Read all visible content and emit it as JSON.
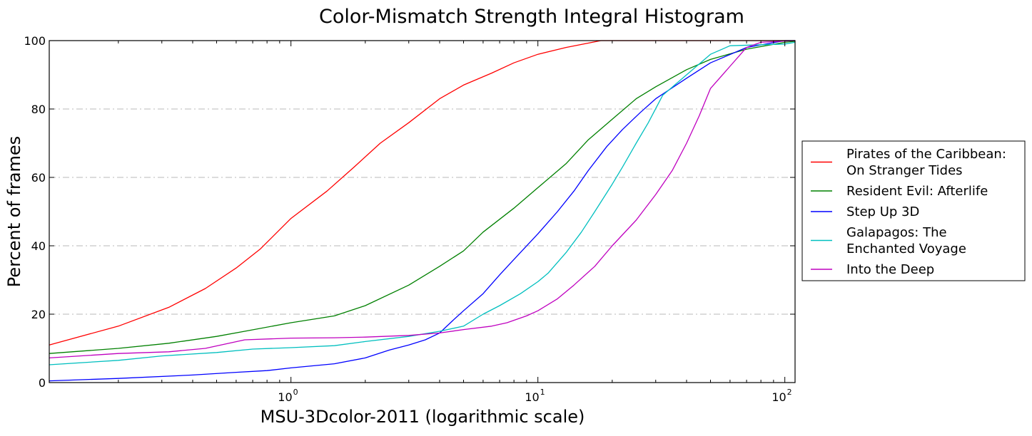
{
  "chart_data": {
    "type": "line",
    "title": "Color-Mismatch Strength Integral Histogram",
    "xlabel": "MSU-3Dcolor-2011 (logarithmic scale)",
    "ylabel": "Percent of frames",
    "x_scale": "log",
    "xlim": [
      0.105,
      110
    ],
    "ylim": [
      0,
      100
    ],
    "x_ticks": [
      {
        "value": 1,
        "base": "10",
        "exp": "0"
      },
      {
        "value": 10,
        "base": "10",
        "exp": "1"
      },
      {
        "value": 100,
        "base": "10",
        "exp": "2"
      }
    ],
    "y_ticks": [
      0,
      20,
      40,
      60,
      80,
      100
    ],
    "grid": "horizontal dashed",
    "legend_position": "right, outside plot",
    "series": [
      {
        "name": "Pirates of the Caribbean:\nOn Stranger Tides",
        "legend_lines": [
          "Pirates of the Caribbean:",
          "On Stranger Tides"
        ],
        "color": "#ff0000",
        "points": [
          [
            0.105,
            11
          ],
          [
            0.2,
            16.5
          ],
          [
            0.32,
            22
          ],
          [
            0.45,
            27.5
          ],
          [
            0.6,
            33.5
          ],
          [
            0.75,
            39
          ],
          [
            1.0,
            48
          ],
          [
            1.4,
            56
          ],
          [
            1.8,
            63
          ],
          [
            2.3,
            70
          ],
          [
            3.0,
            76
          ],
          [
            4.0,
            83
          ],
          [
            5.0,
            87
          ],
          [
            6.5,
            90.5
          ],
          [
            8.0,
            93.5
          ],
          [
            10,
            96
          ],
          [
            13,
            98
          ],
          [
            18,
            100
          ],
          [
            110,
            100
          ]
        ]
      },
      {
        "name": "Resident Evil: Afterlife",
        "legend_lines": [
          "Resident Evil: Afterlife"
        ],
        "color": "#008000",
        "points": [
          [
            0.105,
            8.5
          ],
          [
            0.2,
            10
          ],
          [
            0.32,
            11.5
          ],
          [
            0.5,
            13.5
          ],
          [
            0.65,
            15
          ],
          [
            1.0,
            17.5
          ],
          [
            1.5,
            19.5
          ],
          [
            2.0,
            22.5
          ],
          [
            3.0,
            28.5
          ],
          [
            4.0,
            34
          ],
          [
            5.0,
            38.5
          ],
          [
            6.0,
            44
          ],
          [
            8.0,
            51
          ],
          [
            10,
            57
          ],
          [
            13,
            64
          ],
          [
            16,
            71
          ],
          [
            20,
            77
          ],
          [
            25,
            83
          ],
          [
            30,
            86.5
          ],
          [
            40,
            91.5
          ],
          [
            50,
            94.5
          ],
          [
            70,
            97.5
          ],
          [
            100,
            99.5
          ],
          [
            110,
            99.8
          ]
        ]
      },
      {
        "name": "Step Up 3D",
        "legend_lines": [
          "Step Up 3D"
        ],
        "color": "#0000ff",
        "points": [
          [
            0.105,
            0.5
          ],
          [
            0.2,
            1.2
          ],
          [
            0.4,
            2.2
          ],
          [
            0.6,
            3.0
          ],
          [
            0.8,
            3.5
          ],
          [
            1.0,
            4.3
          ],
          [
            1.5,
            5.5
          ],
          [
            2.0,
            7.2
          ],
          [
            2.5,
            9.5
          ],
          [
            3.0,
            11
          ],
          [
            3.5,
            12.5
          ],
          [
            4.0,
            14.5
          ],
          [
            4.5,
            18
          ],
          [
            5.0,
            21
          ],
          [
            6.0,
            26
          ],
          [
            7.0,
            31.5
          ],
          [
            8.0,
            36
          ],
          [
            10,
            43.5
          ],
          [
            12,
            50
          ],
          [
            14,
            56
          ],
          [
            16,
            62
          ],
          [
            19,
            69
          ],
          [
            22,
            74
          ],
          [
            26,
            79
          ],
          [
            30,
            83
          ],
          [
            40,
            89
          ],
          [
            50,
            93.5
          ],
          [
            70,
            98
          ],
          [
            100,
            100
          ],
          [
            110,
            100
          ]
        ]
      },
      {
        "name": "Galapagos: The\nEnchanted Voyage",
        "legend_lines": [
          "Galapagos: The",
          "Enchanted Voyage"
        ],
        "color": "#00bfbf",
        "points": [
          [
            0.105,
            5.2
          ],
          [
            0.2,
            6.5
          ],
          [
            0.3,
            7.8
          ],
          [
            0.5,
            8.8
          ],
          [
            0.7,
            9.8
          ],
          [
            1.0,
            10.2
          ],
          [
            1.5,
            10.8
          ],
          [
            2.0,
            12
          ],
          [
            3.0,
            13.5
          ],
          [
            4.0,
            15
          ],
          [
            5.0,
            16.5
          ],
          [
            6.0,
            20
          ],
          [
            7.0,
            22.5
          ],
          [
            8.5,
            26
          ],
          [
            10,
            29.5
          ],
          [
            11,
            32
          ],
          [
            13,
            38
          ],
          [
            15,
            44
          ],
          [
            17,
            50
          ],
          [
            20,
            58
          ],
          [
            22,
            63
          ],
          [
            25,
            70
          ],
          [
            28,
            76
          ],
          [
            32,
            84
          ],
          [
            40,
            90
          ],
          [
            50,
            96
          ],
          [
            60,
            98.5
          ],
          [
            100,
            99
          ],
          [
            110,
            99.5
          ]
        ]
      },
      {
        "name": "Into the Deep",
        "legend_lines": [
          "Into the Deep"
        ],
        "color": "#bf00bf",
        "points": [
          [
            0.105,
            7.2
          ],
          [
            0.2,
            8.5
          ],
          [
            0.32,
            9
          ],
          [
            0.45,
            10
          ],
          [
            0.65,
            12.5
          ],
          [
            1.0,
            13
          ],
          [
            1.5,
            13.1
          ],
          [
            2.0,
            13.3
          ],
          [
            3.0,
            13.8
          ],
          [
            4.0,
            14.5
          ],
          [
            5.0,
            15.5
          ],
          [
            6.5,
            16.5
          ],
          [
            7.5,
            17.5
          ],
          [
            9.0,
            19.5
          ],
          [
            10,
            21
          ],
          [
            12,
            24.5
          ],
          [
            14,
            28.5
          ],
          [
            17,
            34
          ],
          [
            20,
            40
          ],
          [
            25,
            47.5
          ],
          [
            30,
            55
          ],
          [
            35,
            62
          ],
          [
            40,
            70
          ],
          [
            45,
            78
          ],
          [
            50,
            86
          ],
          [
            60,
            92.5
          ],
          [
            70,
            98
          ],
          [
            80,
            99.5
          ],
          [
            110,
            100
          ]
        ]
      }
    ]
  }
}
